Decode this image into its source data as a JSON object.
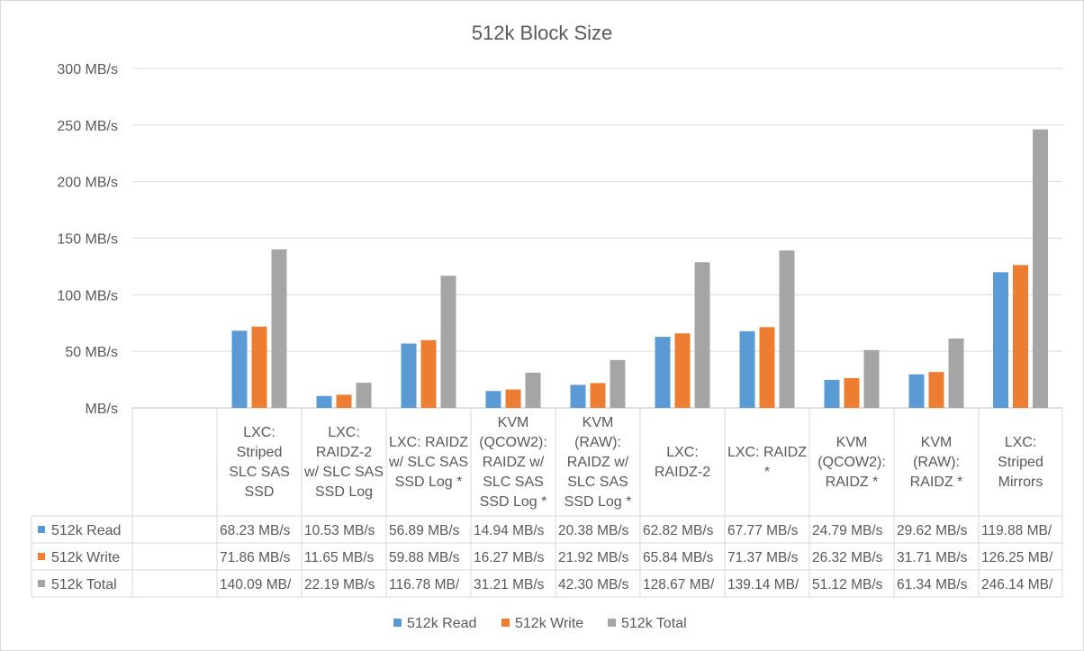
{
  "chart_data": {
    "type": "bar",
    "title": "512k Block Size",
    "categories": [
      [
        "",
        "",
        "",
        ""
      ],
      [
        "LXC:",
        "Striped",
        "SLC SAS",
        "SSD"
      ],
      [
        "LXC:",
        "RAIDZ-2",
        "w/ SLC SAS",
        "SSD Log"
      ],
      [
        "LXC: RAIDZ",
        "w/ SLC SAS",
        "SSD Log *"
      ],
      [
        "KVM",
        "(QCOW2):",
        "RAIDZ w/",
        "SLC SAS",
        "SSD Log *"
      ],
      [
        "KVM",
        "(RAW):",
        "RAIDZ w/",
        "SLC SAS",
        "SSD Log *"
      ],
      [
        "LXC:",
        "RAIDZ-2"
      ],
      [
        "LXC: RAIDZ",
        "*"
      ],
      [
        "KVM",
        "(QCOW2):",
        "RAIDZ *"
      ],
      [
        "KVM",
        "(RAW):",
        "RAIDZ *"
      ],
      [
        "LXC:",
        "Striped",
        "Mirrors"
      ]
    ],
    "ylim": [
      0,
      300
    ],
    "yticks": [
      "MB/s",
      "50 MB/s",
      "100 MB/s",
      "150 MB/s",
      "200 MB/s",
      "250 MB/s",
      "300 MB/s"
    ],
    "grid": true,
    "legend_position": "bottom",
    "series": [
      {
        "name": "512k Read",
        "color": "#5B9BD5",
        "values": [
          null,
          68.23,
          10.53,
          56.89,
          14.94,
          20.38,
          62.82,
          67.77,
          24.79,
          29.62,
          119.88
        ],
        "table_labels": [
          "",
          "68.23 MB/s",
          "10.53 MB/s",
          "56.89 MB/s",
          "14.94 MB/s",
          "20.38 MB/s",
          "62.82 MB/s",
          "67.77 MB/s",
          "24.79 MB/s",
          "29.62 MB/s",
          "119.88 MB/"
        ]
      },
      {
        "name": "512k Write",
        "color": "#ED7D31",
        "values": [
          null,
          71.86,
          11.65,
          59.88,
          16.27,
          21.92,
          65.84,
          71.37,
          26.32,
          31.71,
          126.25
        ],
        "table_labels": [
          "",
          "71.86 MB/s",
          "11.65 MB/s",
          "59.88 MB/s",
          "16.27 MB/s",
          "21.92 MB/s",
          "65.84 MB/s",
          "71.37 MB/s",
          "26.32 MB/s",
          "31.71 MB/s",
          "126.25 MB/"
        ]
      },
      {
        "name": "512k Total",
        "color": "#A5A5A5",
        "values": [
          null,
          140.09,
          22.19,
          116.78,
          31.21,
          42.3,
          128.67,
          139.14,
          51.12,
          61.34,
          246.14
        ],
        "table_labels": [
          "",
          "140.09 MB/",
          "22.19 MB/s",
          "116.78 MB/",
          "31.21 MB/s",
          "42.30 MB/s",
          "128.67 MB/",
          "139.14 MB/",
          "51.12 MB/s",
          "61.34 MB/s",
          "246.14 MB/"
        ]
      }
    ]
  }
}
